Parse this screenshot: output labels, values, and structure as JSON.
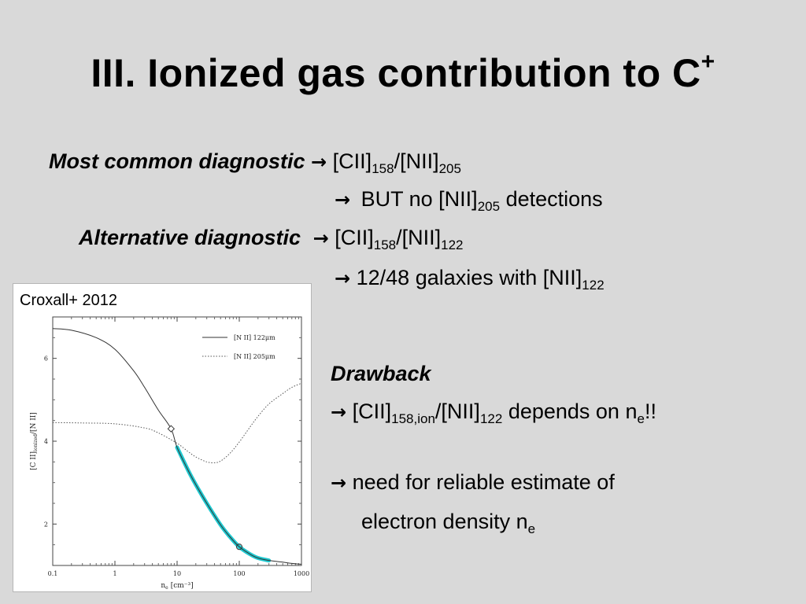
{
  "title": {
    "main": "III. Ionized gas contribution to C",
    "sup": "+"
  },
  "lines": {
    "l1": {
      "label": "Most common diagnostic",
      "arrow": "→",
      "a": "[CII]",
      "a_sub": "158",
      "b": "/[NII]",
      "b_sub": "205"
    },
    "l2": {
      "arrow": "→",
      "a": "BUT no [NII]",
      "a_sub": "205",
      "b": " detections"
    },
    "l3": {
      "label": "Alternative diagnostic",
      "arrow": "→",
      "a": "[CII]",
      "a_sub": "158",
      "b": "/[NII]",
      "b_sub": "122"
    },
    "l4": {
      "arrow": "→",
      "a": "12/48 galaxies with [NII]",
      "a_sub": "122"
    },
    "l5": {
      "label": "Drawback"
    },
    "l6": {
      "arrow": "→",
      "a": "[CII]",
      "a_sub": "158,ion",
      "b": "/[NII]",
      "b_sub": "122",
      "c": " depends on n",
      "c_sub": "e",
      "d": "!!"
    },
    "l7": {
      "arrow": "→",
      "a": "need for reliable estimate of"
    },
    "l8": {
      "a": "electron density n",
      "a_sub": "e"
    }
  },
  "colors": {
    "highlight": "#1ec8cf",
    "background": "#d9d9d9"
  },
  "chart_data": {
    "type": "line",
    "credit": "Croxall+ 2012",
    "xlabel": "n",
    "xlabel_sub": "e",
    "xlabel_unit": "[cm⁻³]",
    "ylabel": "[C II]",
    "ylabel_sub": "ionized",
    "ylabel_tail": "/[N II]",
    "xscale": "log",
    "xlim": [
      0.1,
      1000
    ],
    "ylim": [
      1.0,
      7.0
    ],
    "xticks": [
      0.1,
      1,
      10,
      100,
      1000
    ],
    "xtick_labels": [
      "0.1",
      "1",
      "10",
      "100",
      "1000"
    ],
    "yticks": [
      2,
      4,
      6
    ],
    "ytick_labels": [
      "2",
      "4",
      "6"
    ],
    "legend_position": "top-right",
    "series": [
      {
        "name": "[N II] 122μm",
        "style": "solid",
        "x": [
          0.1,
          0.2,
          0.5,
          1,
          2,
          3,
          5,
          8,
          10,
          15,
          20,
          30,
          50,
          70,
          100,
          150,
          200,
          300,
          500,
          700,
          1000
        ],
        "y": [
          6.72,
          6.68,
          6.5,
          6.22,
          5.7,
          5.3,
          4.75,
          4.3,
          3.85,
          3.3,
          2.95,
          2.5,
          1.98,
          1.7,
          1.45,
          1.27,
          1.18,
          1.12,
          1.08,
          1.05,
          1.03
        ]
      },
      {
        "name": "[N II] 205μm",
        "style": "dotted",
        "x": [
          0.1,
          0.3,
          1,
          3,
          5,
          10,
          15,
          20,
          30,
          40,
          50,
          70,
          100,
          150,
          200,
          300,
          500,
          700,
          1000
        ],
        "y": [
          4.45,
          4.44,
          4.42,
          4.32,
          4.2,
          3.95,
          3.75,
          3.62,
          3.5,
          3.48,
          3.52,
          3.7,
          3.98,
          4.35,
          4.6,
          4.9,
          5.15,
          5.3,
          5.4
        ]
      }
    ],
    "highlight": {
      "x_from": 10,
      "x_to": 300,
      "series": "[N II] 122μm"
    },
    "markers": [
      {
        "series": "[N II] 122μm",
        "x": 8,
        "y": 4.3,
        "shape": "diamond"
      },
      {
        "series": "[N II] 122μm",
        "x": 100,
        "y": 1.45,
        "shape": "circle"
      }
    ]
  }
}
